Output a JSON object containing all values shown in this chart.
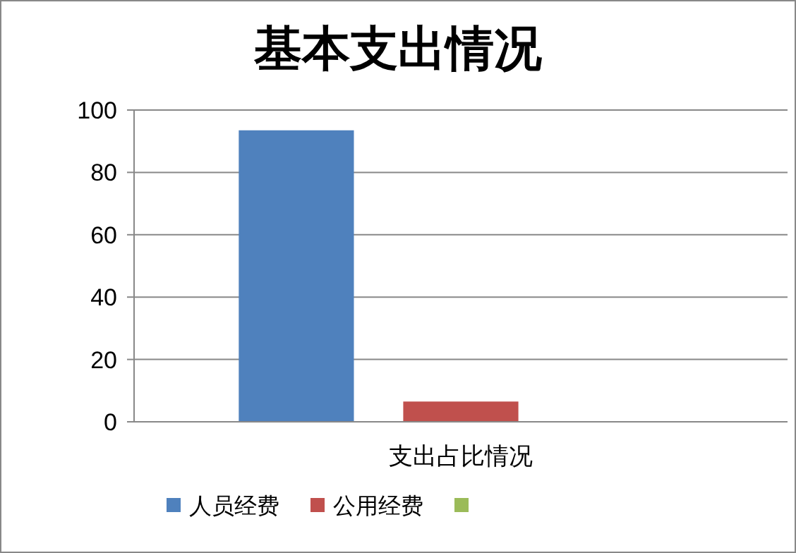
{
  "chart_data": {
    "type": "bar",
    "title": "基本支出情况",
    "categories": [
      "支出占比情况"
    ],
    "series": [
      {
        "name": "人员经费",
        "color": "#4f81bd",
        "values": [
          93.5
        ]
      },
      {
        "name": "公用经费",
        "color": "#c0504d",
        "values": [
          6.5
        ]
      },
      {
        "color": "#9bbb59",
        "values": [
          0
        ]
      }
    ],
    "ylim": [
      0,
      100
    ],
    "yticks": [
      0,
      20,
      40,
      60,
      80,
      100
    ],
    "grid": "y",
    "legend": "bottom"
  }
}
